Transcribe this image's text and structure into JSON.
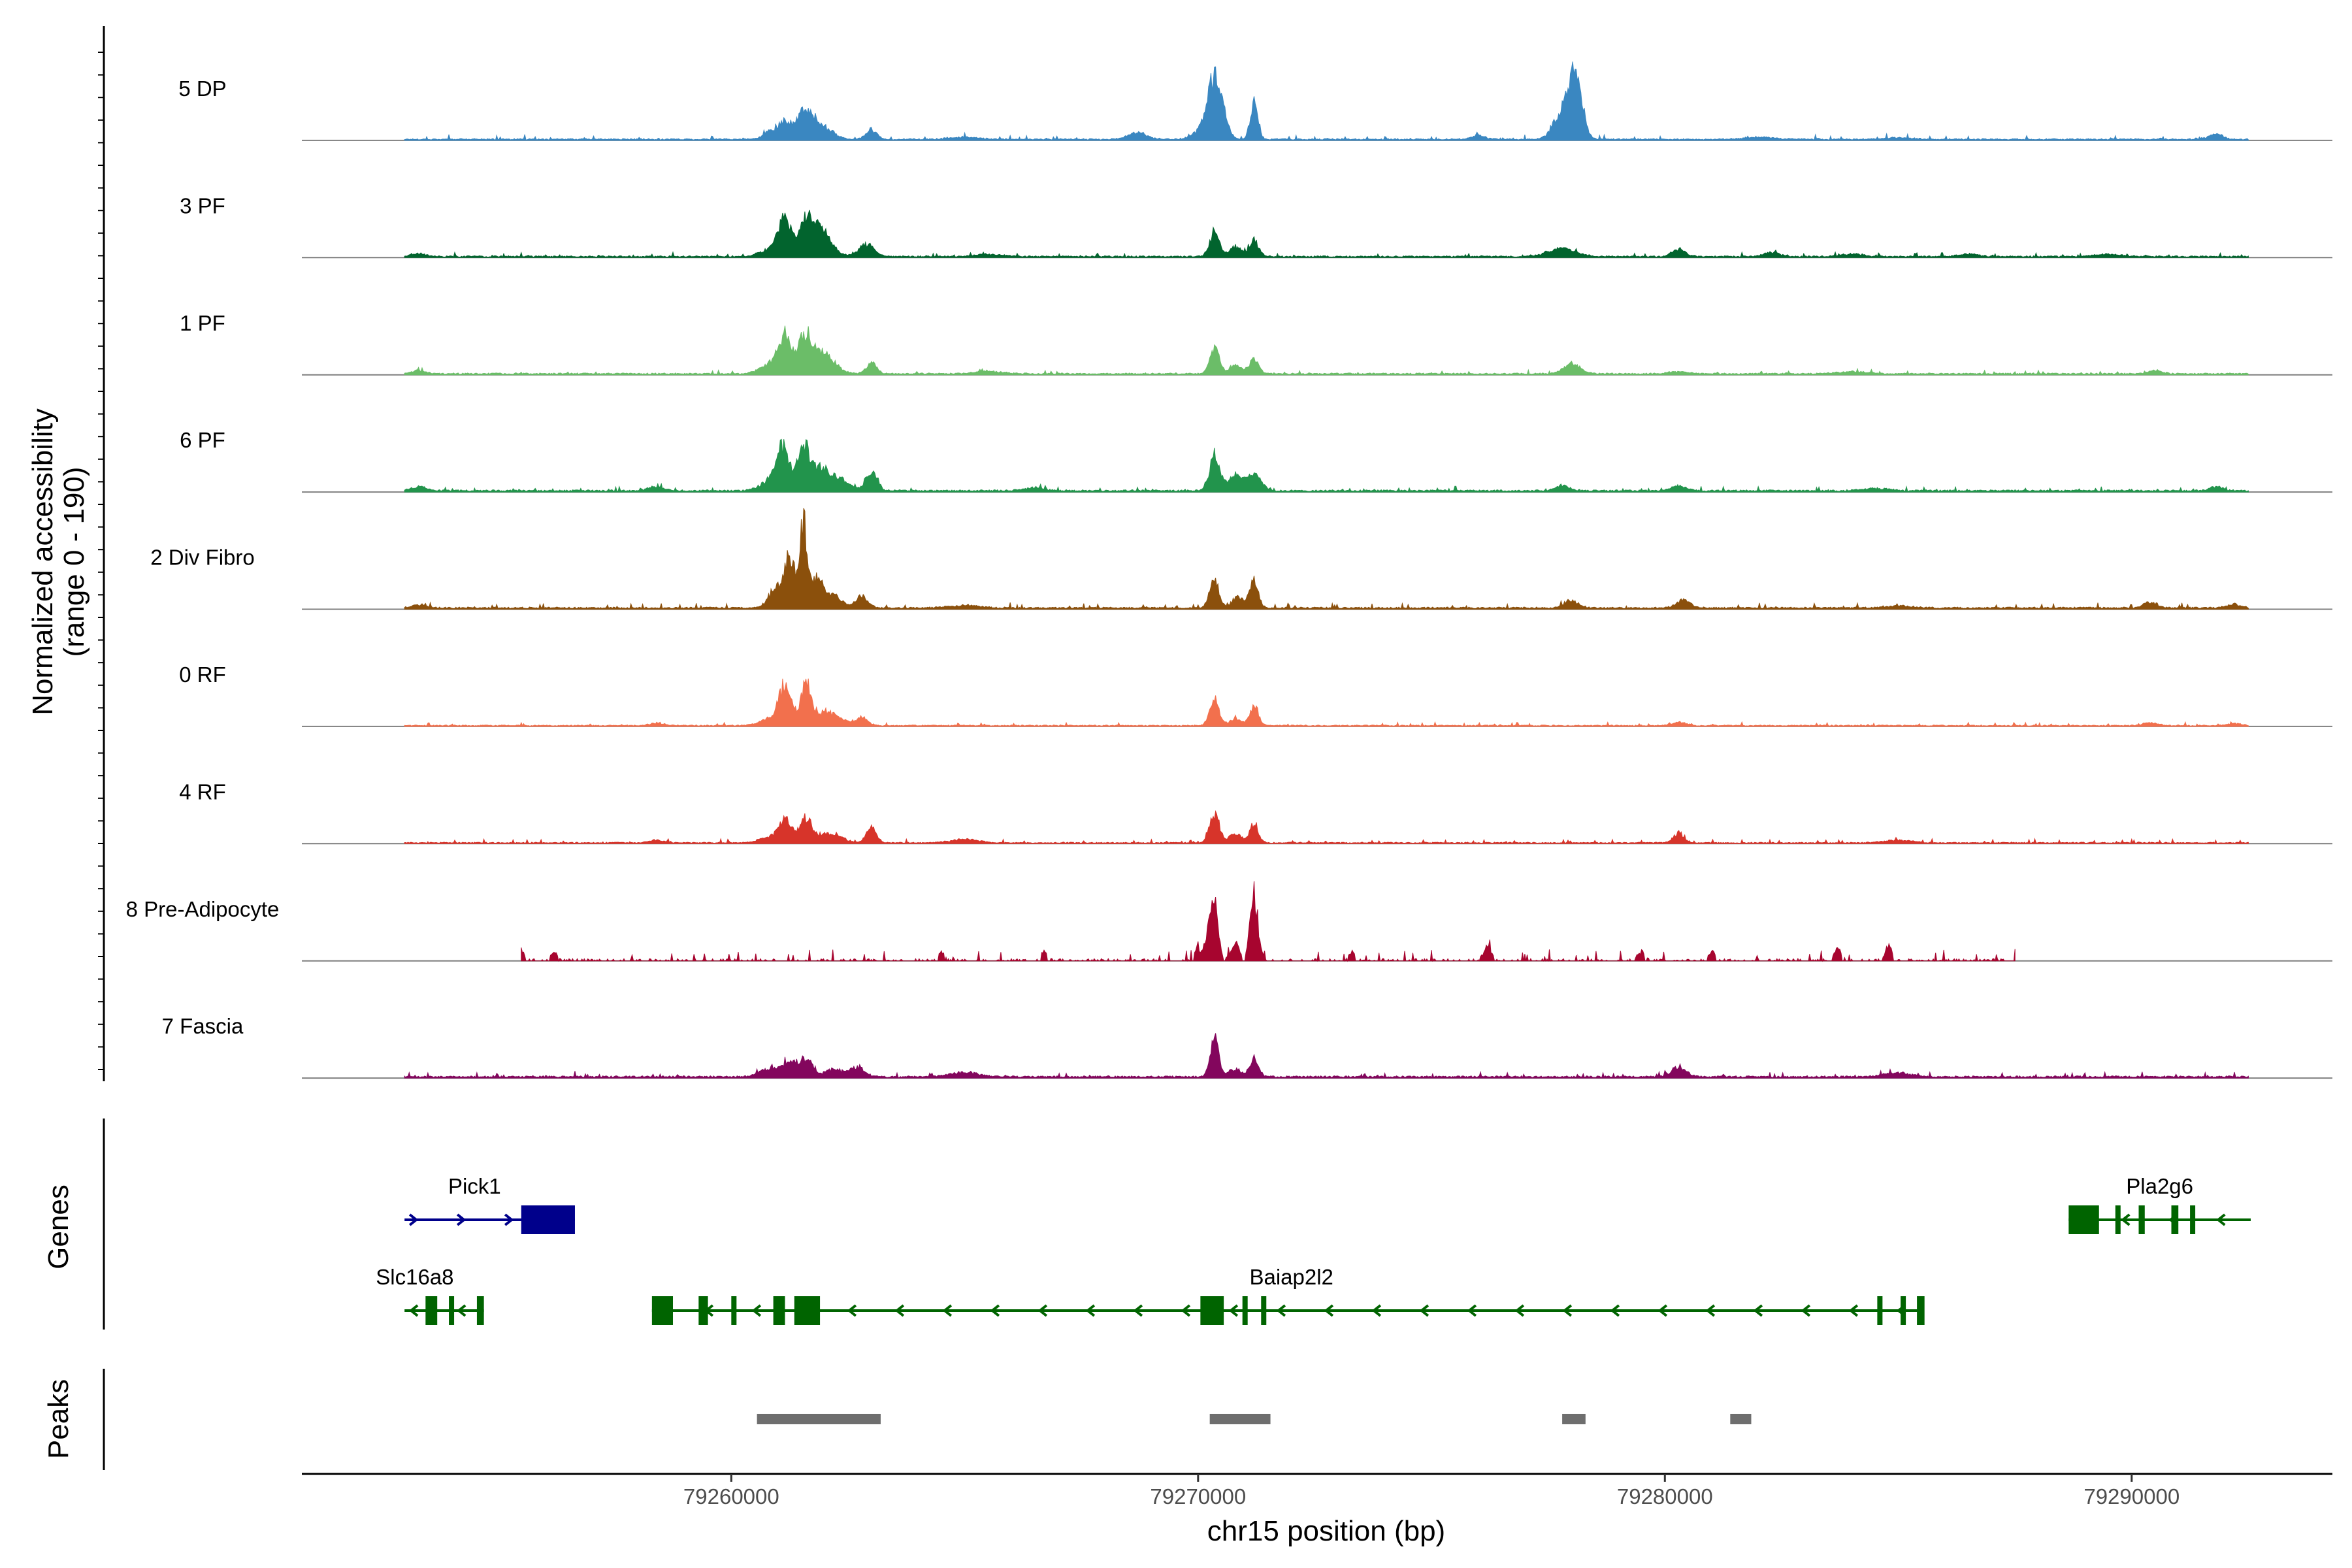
{
  "chart_data": {
    "type": "area",
    "chromosome": "chr15",
    "x_range_bp": [
      79250800,
      79294300
    ],
    "xlabel": "chr15 position (bp)",
    "x_ticks": [
      79260000,
      79270000,
      79280000,
      79290000
    ],
    "x_tick_labels": [
      "79260000",
      "79270000",
      "79280000",
      "79290000"
    ],
    "ylabel_line1": "Normalized accessibility",
    "ylabel_line2": "(range 0 - 190)",
    "y_range": [
      0,
      190
    ],
    "coverage_span_bp": [
      79253000,
      79292500
    ],
    "tracks": [
      {
        "name": "5 DP",
        "color": "#3a87c1",
        "baseline": 2.5,
        "noise": 4.0,
        "peaks": [
          [
            79260800,
            14,
            120
          ],
          [
            79261150,
            36,
            140
          ],
          [
            79261550,
            48,
            140
          ],
          [
            79261800,
            28,
            140
          ],
          [
            79262100,
            14,
            170
          ],
          [
            79263000,
            18,
            110
          ],
          [
            79270200,
            30,
            200
          ],
          [
            79270350,
            90,
            120
          ],
          [
            79270550,
            32,
            110
          ],
          [
            79271200,
            76,
            80
          ],
          [
            79277800,
            55,
            180
          ],
          [
            79278050,
            95,
            110
          ],
          [
            79278200,
            45,
            110
          ],
          [
            79276000,
            7,
            150
          ],
          [
            79268700,
            12,
            200
          ],
          [
            79265000,
            4,
            300
          ],
          [
            79282000,
            4,
            300
          ],
          [
            79285000,
            3,
            300
          ],
          [
            79291800,
            10,
            150
          ]
        ]
      },
      {
        "name": "3 PF",
        "color": "#02642e",
        "baseline": 2.5,
        "noise": 3.5,
        "peaks": [
          [
            79260800,
            12,
            200
          ],
          [
            79261150,
            68,
            150
          ],
          [
            79261600,
            70,
            140
          ],
          [
            79261900,
            40,
            150
          ],
          [
            79262100,
            18,
            180
          ],
          [
            79262900,
            22,
            160
          ],
          [
            79270350,
            48,
            100
          ],
          [
            79270800,
            18,
            130
          ],
          [
            79271200,
            30,
            100
          ],
          [
            79277800,
            14,
            300
          ],
          [
            79280300,
            12,
            150
          ],
          [
            79282300,
            8,
            150
          ],
          [
            79284000,
            5,
            200
          ],
          [
            79286500,
            5,
            200
          ],
          [
            79253300,
            6,
            150
          ],
          [
            79265500,
            4,
            300
          ],
          [
            79289500,
            4,
            300
          ]
        ]
      },
      {
        "name": "1 PF",
        "color": "#6bbd68",
        "baseline": 2.5,
        "noise": 3.0,
        "peaks": [
          [
            79260800,
            16,
            200
          ],
          [
            79261150,
            70,
            150
          ],
          [
            79261600,
            76,
            140
          ],
          [
            79261950,
            34,
            150
          ],
          [
            79262200,
            14,
            180
          ],
          [
            79263000,
            20,
            110
          ],
          [
            79270350,
            48,
            100
          ],
          [
            79270800,
            15,
            130
          ],
          [
            79271200,
            26,
            100
          ],
          [
            79278000,
            18,
            180
          ],
          [
            79253300,
            6,
            150
          ],
          [
            79265500,
            4,
            300
          ],
          [
            79280300,
            4,
            200
          ],
          [
            79284000,
            4,
            300
          ],
          [
            79290500,
            5,
            150
          ]
        ]
      },
      {
        "name": "6 PF",
        "color": "#22944c",
        "baseline": 3,
        "noise": 4.0,
        "peaks": [
          [
            79260800,
            16,
            200
          ],
          [
            79261100,
            80,
            140
          ],
          [
            79261550,
            84,
            130
          ],
          [
            79261900,
            40,
            160
          ],
          [
            79262300,
            24,
            200
          ],
          [
            79263000,
            38,
            120
          ],
          [
            79270350,
            66,
            110
          ],
          [
            79270800,
            30,
            150
          ],
          [
            79271200,
            34,
            140
          ],
          [
            79258400,
            8,
            150
          ],
          [
            79277800,
            10,
            150
          ],
          [
            79280300,
            10,
            150
          ],
          [
            79253300,
            8,
            150
          ],
          [
            79266500,
            6,
            200
          ],
          [
            79291800,
            7,
            150
          ],
          [
            79284500,
            4,
            300
          ]
        ]
      },
      {
        "name": "2 Div Fibro",
        "color": "#8b500c",
        "baseline": 3,
        "noise": 4.5,
        "peaks": [
          [
            79260950,
            35,
            150
          ],
          [
            79261250,
            92,
            110
          ],
          [
            79261550,
            150,
            90
          ],
          [
            79261850,
            58,
            120
          ],
          [
            79262200,
            22,
            160
          ],
          [
            79262800,
            22,
            130
          ],
          [
            79270350,
            50,
            100
          ],
          [
            79270850,
            20,
            120
          ],
          [
            79271200,
            52,
            90
          ],
          [
            79278000,
            14,
            150
          ],
          [
            79280400,
            14,
            150
          ],
          [
            79290400,
            10,
            150
          ],
          [
            79292200,
            6,
            150
          ],
          [
            79253300,
            6,
            150
          ],
          [
            79265000,
            5,
            300
          ],
          [
            79285000,
            4,
            300
          ]
        ]
      },
      {
        "name": "0 RF",
        "color": "#f2704d",
        "baseline": 2,
        "noise": 3.0,
        "peaks": [
          [
            79260800,
            12,
            200
          ],
          [
            79261150,
            74,
            130
          ],
          [
            79261600,
            76,
            120
          ],
          [
            79262000,
            24,
            150
          ],
          [
            79262300,
            14,
            170
          ],
          [
            79262800,
            16,
            120
          ],
          [
            79270350,
            48,
            100
          ],
          [
            79270800,
            12,
            130
          ],
          [
            79271200,
            38,
            90
          ],
          [
            79258400,
            5,
            150
          ],
          [
            79280300,
            6,
            150
          ],
          [
            79290400,
            5,
            150
          ],
          [
            79292200,
            4,
            150
          ]
        ]
      },
      {
        "name": "4 RF",
        "color": "#d7342a",
        "baseline": 2,
        "noise": 3.5,
        "peaks": [
          [
            79260800,
            10,
            200
          ],
          [
            79261150,
            40,
            140
          ],
          [
            79261600,
            48,
            130
          ],
          [
            79262000,
            14,
            150
          ],
          [
            79262300,
            10,
            170
          ],
          [
            79263000,
            28,
            110
          ],
          [
            79270350,
            56,
            100
          ],
          [
            79270800,
            16,
            130
          ],
          [
            79271200,
            36,
            90
          ],
          [
            79280300,
            18,
            110
          ],
          [
            79258400,
            5,
            150
          ],
          [
            79265000,
            6,
            300
          ],
          [
            79285000,
            5,
            300
          ]
        ]
      },
      {
        "name": "8 Pre-Adipocyte",
        "color": "#a7052f",
        "baseline": 3,
        "noise": 9.0,
        "coverage_span_bp": [
          79255500,
          79287500
        ],
        "peaks": [
          [
            79255500,
            18,
            60
          ],
          [
            79256200,
            14,
            60
          ],
          [
            79270350,
            100,
            80
          ],
          [
            79270200,
            40,
            60
          ],
          [
            79270800,
            35,
            80
          ],
          [
            79271200,
            120,
            80
          ],
          [
            79270000,
            20,
            70
          ],
          [
            79264500,
            14,
            70
          ],
          [
            79276200,
            22,
            80
          ],
          [
            79279500,
            14,
            70
          ],
          [
            79283700,
            22,
            70
          ],
          [
            79284800,
            26,
            70
          ],
          [
            79281000,
            16,
            70
          ],
          [
            79273300,
            14,
            70
          ],
          [
            79266700,
            14,
            70
          ]
        ]
      },
      {
        "name": "7 Fascia",
        "color": "#83065d",
        "baseline": 3,
        "noise": 4.5,
        "peaks": [
          [
            79260800,
            16,
            200
          ],
          [
            79261250,
            26,
            150
          ],
          [
            79261600,
            32,
            140
          ],
          [
            79262200,
            14,
            180
          ],
          [
            79262700,
            18,
            150
          ],
          [
            79270350,
            66,
            90
          ],
          [
            79270800,
            16,
            130
          ],
          [
            79271200,
            34,
            90
          ],
          [
            79280300,
            18,
            150
          ],
          [
            79265000,
            8,
            300
          ],
          [
            79285000,
            7,
            300
          ]
        ]
      }
    ],
    "genes_panel_title": "Genes",
    "genes": [
      {
        "name": "Pick1",
        "row": 1,
        "strand": "+",
        "color": "#00008b",
        "start": 79253000,
        "end": 79256650,
        "exons": [
          [
            79255500,
            79256650
          ]
        ]
      },
      {
        "name": "Pla2g6",
        "row": 1,
        "strand": "-",
        "color": "#006400",
        "start": 79288650,
        "end": 79292550,
        "exons": [
          [
            79288650,
            79289300
          ],
          [
            79289650,
            79289730
          ],
          [
            79290150,
            79290280
          ],
          [
            79290850,
            79291000
          ],
          [
            79291250,
            79291350
          ]
        ]
      },
      {
        "name": "Slc16a8",
        "row": 2,
        "strand": "-",
        "color": "#006400",
        "start": 79253000,
        "end": 79254700,
        "exons": [
          [
            79253450,
            79253700
          ],
          [
            79253950,
            79254050
          ],
          [
            79254550,
            79254700
          ]
        ]
      },
      {
        "name": "Baiap2l2",
        "row": 2,
        "strand": "-",
        "color": "#006400",
        "start": 79258300,
        "end": 79285550,
        "exons": [
          [
            79258300,
            79258750
          ],
          [
            79259300,
            79259500
          ],
          [
            79260000,
            79260080
          ],
          [
            79260900,
            79261150
          ],
          [
            79261350,
            79261900
          ],
          [
            79270050,
            79270550
          ],
          [
            79270950,
            79271050
          ],
          [
            79271350,
            79271430
          ],
          [
            79284550,
            79284620
          ],
          [
            79285050,
            79285120
          ],
          [
            79285400,
            79285480
          ],
          [
            79285450,
            79285550
          ]
        ]
      }
    ],
    "peaks_panel_title": "Peaks",
    "peaks": [
      [
        79260550,
        79263200
      ],
      [
        79270250,
        79271550
      ],
      [
        79277800,
        79278300
      ],
      [
        79281400,
        79281850
      ]
    ]
  }
}
